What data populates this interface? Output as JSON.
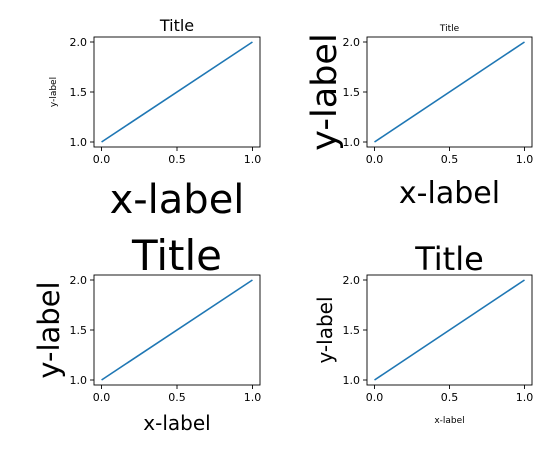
{
  "line_color": "#1f77b4",
  "chart_data": [
    {
      "type": "line",
      "title": "Title",
      "xlabel": "x-label",
      "ylabel": "y-label",
      "x": [
        0.0,
        1.0
      ],
      "series": [
        {
          "name": "line",
          "values": [
            1.0,
            2.0
          ]
        }
      ],
      "xlim": [
        -0.05,
        1.05
      ],
      "ylim": [
        0.95,
        2.05
      ],
      "xticks": [
        0.0,
        0.5,
        1.0
      ],
      "xtick_labels": [
        "0.0",
        "0.5",
        "1.0"
      ],
      "yticks": [
        1.0,
        1.5,
        2.0
      ],
      "ytick_labels": [
        "1.0",
        "1.5",
        "2.0"
      ],
      "grid": false,
      "legend": "none"
    },
    {
      "type": "line",
      "title": "Title",
      "xlabel": "x-label",
      "ylabel": "y-label",
      "x": [
        0.0,
        1.0
      ],
      "series": [
        {
          "name": "line",
          "values": [
            1.0,
            2.0
          ]
        }
      ],
      "xlim": [
        -0.05,
        1.05
      ],
      "ylim": [
        0.95,
        2.05
      ],
      "xticks": [
        0.0,
        0.5,
        1.0
      ],
      "xtick_labels": [
        "0.0",
        "0.5",
        "1.0"
      ],
      "yticks": [
        1.0,
        1.5,
        2.0
      ],
      "ytick_labels": [
        "1.0",
        "1.5",
        "2.0"
      ],
      "grid": false,
      "legend": "none"
    },
    {
      "type": "line",
      "title": "Title",
      "xlabel": "x-label",
      "ylabel": "y-label",
      "x": [
        0.0,
        1.0
      ],
      "series": [
        {
          "name": "line",
          "values": [
            1.0,
            2.0
          ]
        }
      ],
      "xlim": [
        -0.05,
        1.05
      ],
      "ylim": [
        0.95,
        2.05
      ],
      "xticks": [
        0.0,
        0.5,
        1.0
      ],
      "xtick_labels": [
        "0.0",
        "0.5",
        "1.0"
      ],
      "yticks": [
        1.0,
        1.5,
        2.0
      ],
      "ytick_labels": [
        "1.0",
        "1.5",
        "2.0"
      ],
      "grid": false,
      "legend": "none"
    },
    {
      "type": "line",
      "title": "Title",
      "xlabel": "x-label",
      "ylabel": "y-label",
      "x": [
        0.0,
        1.0
      ],
      "series": [
        {
          "name": "line",
          "values": [
            1.0,
            2.0
          ]
        }
      ],
      "xlim": [
        -0.05,
        1.05
      ],
      "ylim": [
        0.95,
        2.05
      ],
      "xticks": [
        0.0,
        0.5,
        1.0
      ],
      "xtick_labels": [
        "0.0",
        "0.5",
        "1.0"
      ],
      "yticks": [
        1.0,
        1.5,
        2.0
      ],
      "ytick_labels": [
        "1.0",
        "1.5",
        "2.0"
      ],
      "grid": false,
      "legend": "none"
    }
  ]
}
